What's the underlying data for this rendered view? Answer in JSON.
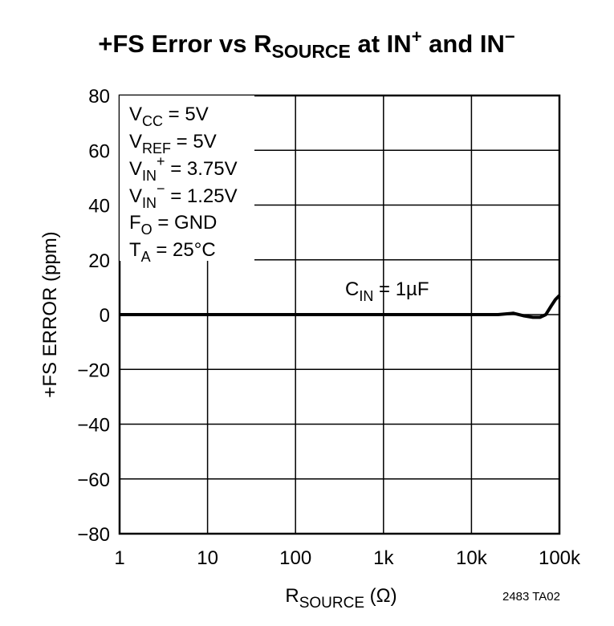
{
  "chart_data": {
    "type": "line",
    "title": [
      "+FS Error vs R",
      "SOURCE",
      " at IN",
      "+",
      " and IN",
      "−"
    ],
    "xlabel": [
      "R",
      "SOURCE",
      " (Ω)"
    ],
    "ylabel": "+FS ERROR (ppm)",
    "footnote": "2483 TA02",
    "conditions": [
      [
        "V",
        "CC",
        " = 5V"
      ],
      [
        "V",
        "REF",
        " = 5V"
      ],
      [
        "V",
        "IN",
        "+",
        " = 3.75V"
      ],
      [
        "V",
        "IN",
        "−",
        " = 1.25V"
      ],
      [
        "F",
        "O",
        " = GND"
      ],
      [
        "T",
        "A",
        " = 25°C"
      ]
    ],
    "curve_label": [
      "C",
      "IN",
      " = 1µF"
    ],
    "xscale": "log",
    "grid": true,
    "xlim": [
      1,
      100000
    ],
    "ylim": [
      -80,
      80
    ],
    "xticks": [
      1,
      10,
      100,
      {
        "value": 1000,
        "label": "1k"
      },
      {
        "value": 10000,
        "label": "10k"
      },
      {
        "value": 100000,
        "label": "100k"
      }
    ],
    "yticks": [
      {
        "value": -80,
        "label": "−80"
      },
      {
        "value": -60,
        "label": "−60"
      },
      {
        "value": -40,
        "label": "−40"
      },
      {
        "value": -20,
        "label": "−20"
      },
      0,
      20,
      40,
      60,
      80
    ],
    "x": [
      1,
      10,
      100,
      1000,
      10000,
      20000,
      30000,
      40000,
      50000,
      60000,
      70000,
      80000,
      90000,
      100000
    ],
    "series": [
      {
        "name": "C_IN = 1µF",
        "color": "#000000",
        "values": [
          0,
          0,
          0,
          0,
          0,
          0,
          0.5,
          -0.5,
          -1,
          -1,
          0,
          3,
          5.5,
          7
        ]
      }
    ]
  }
}
